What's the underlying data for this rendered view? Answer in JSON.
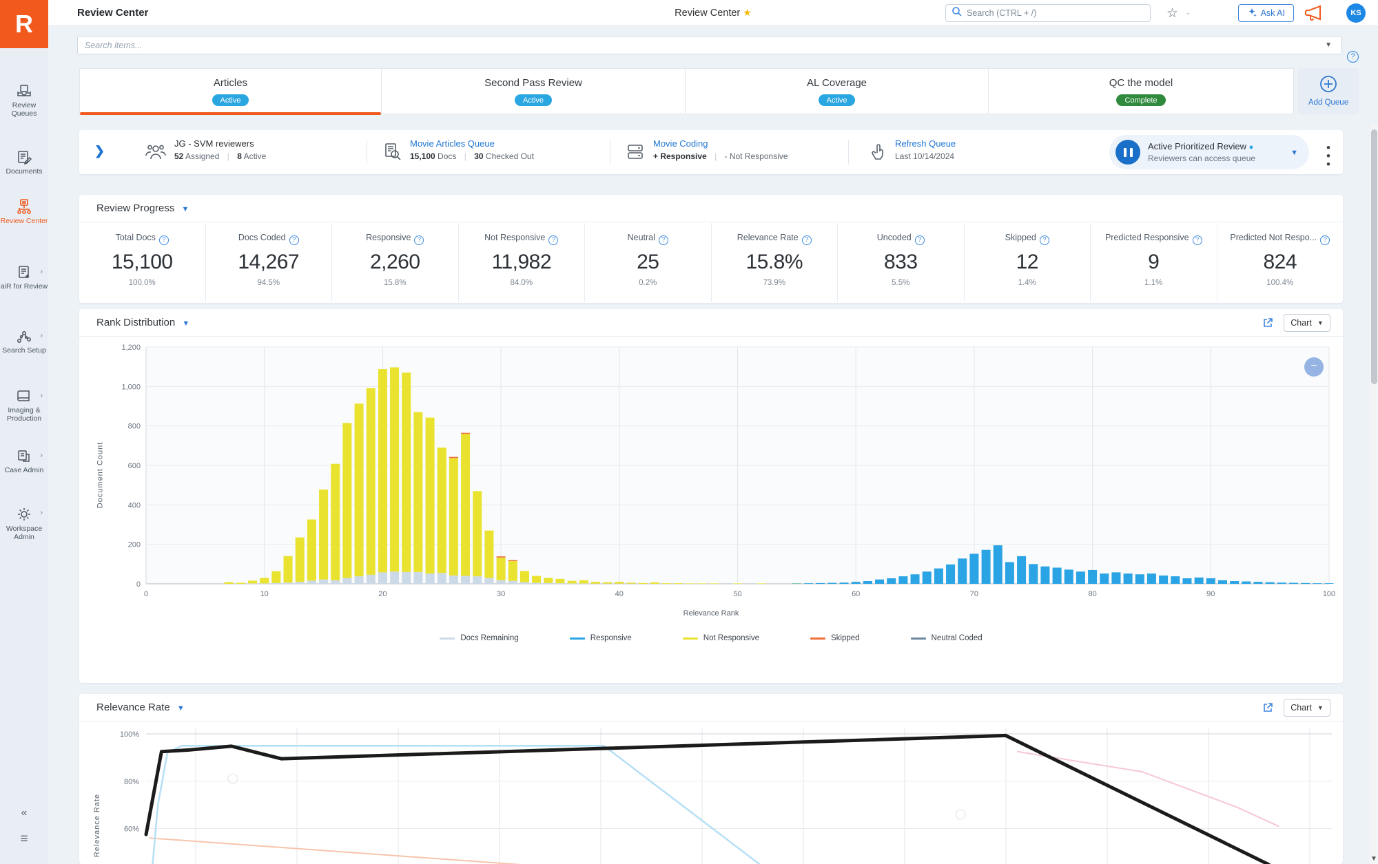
{
  "brand": {
    "logo_letter": "R",
    "orange": "#f1591d"
  },
  "header": {
    "title": "Review Center",
    "center_title": "Review Center",
    "search_placeholder": "Search (CTRL + /)",
    "ask_ai_label": "Ask AI",
    "avatar_initials": "KS"
  },
  "toolbar": {
    "items_search_placeholder": "Search items..."
  },
  "sidebar": {
    "items": [
      {
        "label": "Review Queues"
      },
      {
        "label": "Documents"
      },
      {
        "label": "Review Center",
        "active": true
      },
      {
        "label": "aiR for Review"
      },
      {
        "label": "Search Setup"
      },
      {
        "label": "Imaging & Production"
      },
      {
        "label": "Case Admin"
      },
      {
        "label": "Workspace Admin"
      }
    ]
  },
  "tabs": {
    "items": [
      {
        "label": "Articles",
        "status": "Active",
        "status_color": "#2aa7e0",
        "selected": true
      },
      {
        "label": "Second Pass Review",
        "status": "Active",
        "status_color": "#2aa7e0",
        "selected": false
      },
      {
        "label": "AL Coverage",
        "status": "Active",
        "status_color": "#2aa7e0",
        "selected": false
      },
      {
        "label": "QC the model",
        "status": "Complete",
        "status_color": "#2f8a3d",
        "selected": false
      }
    ],
    "add_queue_label": "Add Queue"
  },
  "queue": {
    "team": {
      "title": "JG - SVM reviewers",
      "assigned_value": "52",
      "assigned_label": "Assigned",
      "active_value": "8",
      "active_label": "Active"
    },
    "queue_link": {
      "title": "Movie Articles Queue",
      "docs_value": "15,100",
      "docs_label": "Docs",
      "checked_value": "30",
      "checked_label": "Checked Out"
    },
    "coding": {
      "title": "Movie Coding",
      "pos": "+ Responsive",
      "neg": "- Not Responsive"
    },
    "refresh": {
      "title": "Refresh Queue",
      "sub": "Last 10/14/2024"
    },
    "status": {
      "title": "Active Prioritized Review",
      "sub": "Reviewers can access queue"
    }
  },
  "progress": {
    "title": "Review Progress",
    "stats": [
      {
        "label": "Total Docs",
        "value": "15,100",
        "sub": "100.0%"
      },
      {
        "label": "Docs Coded",
        "value": "14,267",
        "sub": "94.5%"
      },
      {
        "label": "Responsive",
        "value": "2,260",
        "sub": "15.8%"
      },
      {
        "label": "Not Responsive",
        "value": "11,982",
        "sub": "84.0%"
      },
      {
        "label": "Neutral",
        "value": "25",
        "sub": "0.2%"
      },
      {
        "label": "Relevance Rate",
        "value": "15.8%",
        "sub": "73.9%"
      },
      {
        "label": "Uncoded",
        "value": "833",
        "sub": "5.5%"
      },
      {
        "label": "Skipped",
        "value": "12",
        "sub": "1.4%"
      },
      {
        "label": "Predicted Responsive",
        "value": "9",
        "sub": "1.1%"
      },
      {
        "label": "Predicted Not Respo...",
        "value": "824",
        "sub": "100.4%"
      }
    ]
  },
  "rank": {
    "title": "Rank Distribution",
    "chart_select_label": "Chart"
  },
  "relevance": {
    "title": "Relevance Rate",
    "chart_select_label": "Chart"
  },
  "chart_data": [
    {
      "type": "bar",
      "title": "Rank Distribution",
      "xlabel": "Relevance Rank",
      "ylabel": "Document Count",
      "xlim": [
        0,
        100
      ],
      "ylim": [
        0,
        1200
      ],
      "x_ticks": [
        0,
        10,
        20,
        30,
        40,
        50,
        60,
        70,
        80,
        90,
        100
      ],
      "y_ticks": [
        0,
        200,
        400,
        600,
        800,
        1000,
        1200
      ],
      "grid": true,
      "legend_position": "bottom",
      "stack_order": [
        "docs_remaining",
        "responsive",
        "not_responsive",
        "skipped"
      ],
      "series_colors": {
        "docs_remaining": "#ccd9e7",
        "responsive": "#2aa4e4",
        "not_responsive": "#e9e32f",
        "skipped": "#f0703a",
        "neutral_coded": "#6e87a0"
      },
      "legend": [
        {
          "label": "Docs Remaining",
          "color": "#ccd9e7"
        },
        {
          "label": "Responsive",
          "color": "#2aa4e4"
        },
        {
          "label": "Not Responsive",
          "color": "#e9e32f"
        },
        {
          "label": "Skipped",
          "color": "#f0703a"
        },
        {
          "label": "Neutral Coded",
          "color": "#6e87a0"
        }
      ],
      "bars_format": [
        "rank",
        "docs_remaining",
        "responsive",
        "not_responsive",
        "skipped"
      ],
      "bars": [
        [
          7,
          0,
          0,
          8,
          0
        ],
        [
          8,
          0,
          0,
          5,
          0
        ],
        [
          9,
          2,
          0,
          14,
          0
        ],
        [
          10,
          2,
          0,
          28,
          0
        ],
        [
          11,
          4,
          0,
          60,
          0
        ],
        [
          12,
          6,
          0,
          135,
          0
        ],
        [
          13,
          10,
          0,
          225,
          0
        ],
        [
          14,
          16,
          0,
          310,
          0
        ],
        [
          15,
          22,
          0,
          455,
          0
        ],
        [
          16,
          18,
          0,
          590,
          0
        ],
        [
          17,
          30,
          0,
          785,
          0
        ],
        [
          18,
          38,
          0,
          875,
          0
        ],
        [
          19,
          46,
          0,
          945,
          0
        ],
        [
          20,
          58,
          0,
          1030,
          0
        ],
        [
          21,
          62,
          0,
          1035,
          0
        ],
        [
          22,
          60,
          0,
          1010,
          0
        ],
        [
          23,
          60,
          0,
          810,
          0
        ],
        [
          24,
          52,
          0,
          790,
          0
        ],
        [
          25,
          55,
          0,
          635,
          0
        ],
        [
          26,
          42,
          0,
          595,
          6
        ],
        [
          27,
          40,
          0,
          720,
          5
        ],
        [
          28,
          38,
          0,
          432,
          0
        ],
        [
          29,
          30,
          0,
          240,
          0
        ],
        [
          30,
          18,
          0,
          115,
          6
        ],
        [
          31,
          15,
          0,
          100,
          5
        ],
        [
          32,
          8,
          0,
          57,
          0
        ],
        [
          33,
          5,
          0,
          35,
          0
        ],
        [
          34,
          4,
          0,
          26,
          0
        ],
        [
          35,
          3,
          0,
          22,
          0
        ],
        [
          36,
          2,
          0,
          13,
          0
        ],
        [
          37,
          2,
          0,
          16,
          0
        ],
        [
          38,
          1,
          0,
          9,
          0
        ],
        [
          39,
          1,
          0,
          7,
          0
        ],
        [
          40,
          1,
          0,
          9,
          0
        ],
        [
          41,
          1,
          0,
          5,
          0
        ],
        [
          42,
          0,
          0,
          4,
          0
        ],
        [
          43,
          0,
          0,
          7,
          0
        ],
        [
          44,
          0,
          0,
          3,
          0
        ],
        [
          45,
          0,
          0,
          3,
          0
        ],
        [
          46,
          0,
          0,
          2,
          0
        ],
        [
          47,
          0,
          0,
          2,
          0
        ],
        [
          48,
          0,
          0,
          2,
          0
        ],
        [
          50,
          0,
          0,
          2,
          0
        ],
        [
          52,
          0,
          0,
          2,
          0
        ],
        [
          55,
          0,
          2,
          1,
          0
        ],
        [
          56,
          0,
          3,
          0,
          0
        ],
        [
          57,
          0,
          4,
          0,
          0
        ],
        [
          58,
          0,
          5,
          0,
          0
        ],
        [
          59,
          0,
          6,
          0,
          0
        ],
        [
          60,
          0,
          10,
          0,
          0
        ],
        [
          61,
          0,
          14,
          0,
          0
        ],
        [
          62,
          0,
          22,
          0,
          0
        ],
        [
          63,
          0,
          28,
          0,
          0
        ],
        [
          64,
          0,
          38,
          0,
          0
        ],
        [
          65,
          0,
          48,
          0,
          0
        ],
        [
          66,
          0,
          62,
          0,
          0
        ],
        [
          67,
          0,
          78,
          0,
          0
        ],
        [
          68,
          0,
          98,
          0,
          0
        ],
        [
          69,
          0,
          128,
          0,
          0
        ],
        [
          70,
          0,
          152,
          0,
          0
        ],
        [
          71,
          0,
          172,
          0,
          0
        ],
        [
          72,
          0,
          195,
          0,
          0
        ],
        [
          73,
          0,
          110,
          0,
          0
        ],
        [
          74,
          0,
          140,
          0,
          0
        ],
        [
          75,
          0,
          100,
          0,
          0
        ],
        [
          76,
          0,
          88,
          0,
          0
        ],
        [
          77,
          0,
          82,
          0,
          0
        ],
        [
          78,
          0,
          72,
          0,
          0
        ],
        [
          79,
          0,
          62,
          0,
          0
        ],
        [
          80,
          0,
          70,
          0,
          0
        ],
        [
          81,
          0,
          52,
          0,
          0
        ],
        [
          82,
          0,
          58,
          0,
          0
        ],
        [
          83,
          0,
          52,
          0,
          0
        ],
        [
          84,
          0,
          48,
          0,
          0
        ],
        [
          85,
          0,
          52,
          0,
          0
        ],
        [
          86,
          0,
          42,
          0,
          0
        ],
        [
          87,
          0,
          38,
          0,
          0
        ],
        [
          88,
          0,
          28,
          0,
          0
        ],
        [
          89,
          0,
          32,
          0,
          0
        ],
        [
          90,
          0,
          28,
          0,
          0
        ],
        [
          91,
          0,
          18,
          0,
          0
        ],
        [
          92,
          0,
          14,
          0,
          0
        ],
        [
          93,
          0,
          12,
          0,
          0
        ],
        [
          94,
          0,
          10,
          0,
          0
        ],
        [
          95,
          0,
          8,
          0,
          0
        ],
        [
          96,
          0,
          6,
          0,
          0
        ],
        [
          97,
          0,
          5,
          0,
          0
        ],
        [
          98,
          0,
          4,
          0,
          0
        ],
        [
          99,
          0,
          3,
          0,
          0
        ],
        [
          100,
          0,
          3,
          0,
          0
        ]
      ]
    },
    {
      "type": "line",
      "title": "Relevance Rate",
      "ylabel": "Relevance Rate",
      "y_ticks_visible": [
        "100%",
        "80%",
        "60%"
      ],
      "ylim_visible_top": 100,
      "grid": true,
      "series": [
        {
          "name": "line-black-bold",
          "color": "#1b1b1b",
          "width": 5,
          "points": [
            [
              0,
              57.5
            ],
            [
              1.3,
              92.5
            ],
            [
              3.6,
              93.2
            ],
            [
              7.2,
              94.8
            ],
            [
              11.4,
              89.5
            ],
            [
              72.5,
              99.3
            ],
            [
              94.6,
              45
            ],
            [
              96,
              40
            ]
          ]
        },
        {
          "name": "line-light-blue",
          "color": "#b5dff5",
          "width": 2.5,
          "points": [
            [
              0.5,
              42
            ],
            [
              1.0,
              70
            ],
            [
              1.8,
              92
            ],
            [
              3.0,
              95
            ],
            [
              38.6,
              95
            ],
            [
              52.5,
              42
            ]
          ]
        },
        {
          "name": "line-light-pink",
          "color": "#f6c6d8",
          "width": 2,
          "points": [
            [
              73.5,
              92.5
            ],
            [
              84,
              84
            ],
            [
              92,
              69
            ],
            [
              95.5,
              61
            ]
          ]
        },
        {
          "name": "line-light-salmon",
          "color": "#f7c4ab",
          "width": 2,
          "points": [
            [
              0.3,
              56
            ],
            [
              42,
              41
            ]
          ]
        }
      ],
      "markers": [
        [
          7.3,
          81
        ],
        [
          68.7,
          66
        ]
      ]
    }
  ]
}
